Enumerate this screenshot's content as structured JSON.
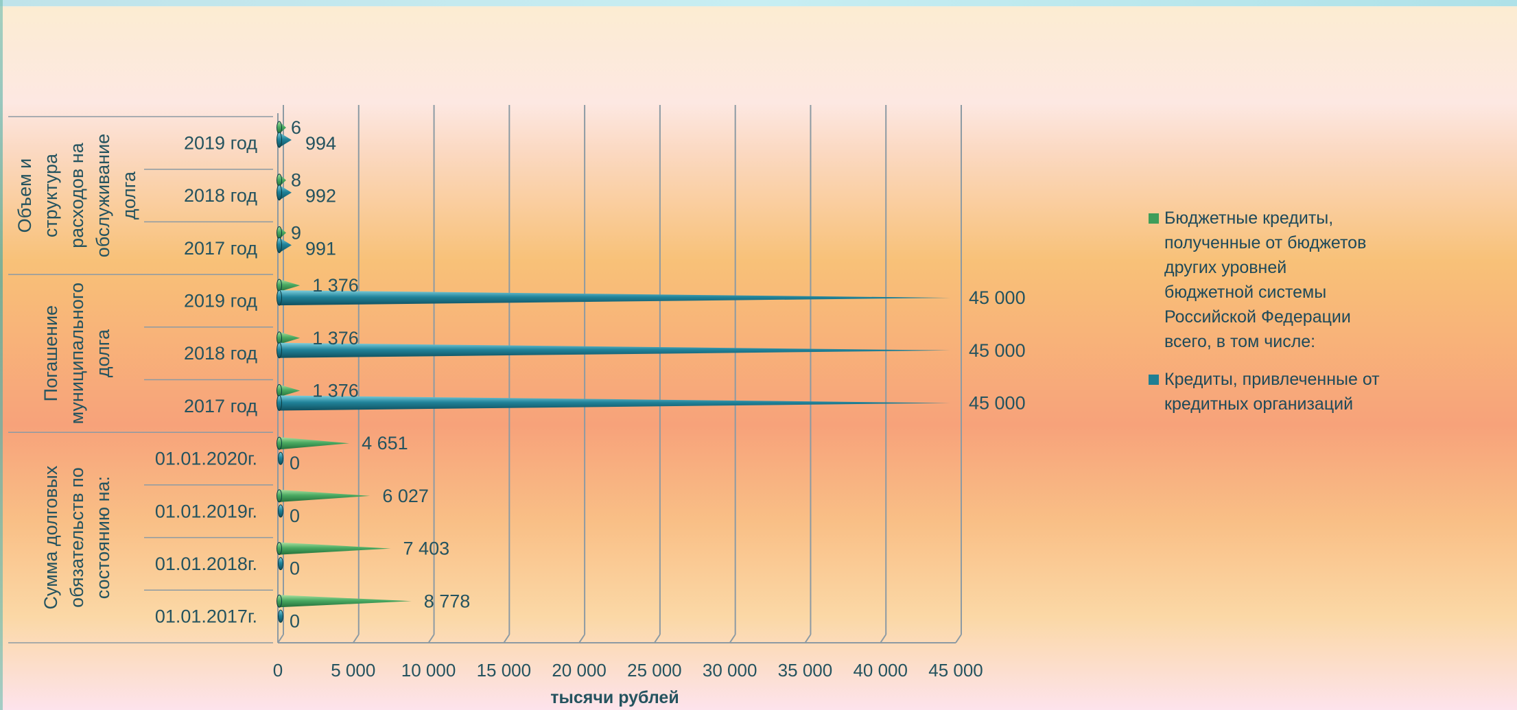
{
  "chart_data": {
    "type": "bar",
    "orientation": "horizontal",
    "style": "3d-cone",
    "xlabel": "тысячи рублей",
    "xlim": [
      0,
      45000
    ],
    "xticks": [
      "0",
      "5 000",
      "10 000",
      "15 000",
      "20 000",
      "25 000",
      "30 000",
      "35 000",
      "40 000",
      "45 000"
    ],
    "grid": true,
    "legend_position": "right",
    "groups": [
      {
        "label": "Объем и структура расходов на обслуживание долга",
        "lines": [
          "Объем и",
          "структура",
          "расходов на",
          "обслуживание",
          "долга"
        ]
      },
      {
        "label": "Погашение муниципального долга",
        "lines": [
          "Погашение",
          "муниципального",
          "долга"
        ]
      },
      {
        "label": "Сумма долговых обязательств по состоянию на:",
        "lines": [
          "Сумма долговых",
          "обязательств по",
          "состоянию на:"
        ]
      }
    ],
    "categories": [
      {
        "group": 0,
        "label": "2019 год"
      },
      {
        "group": 0,
        "label": "2018 год"
      },
      {
        "group": 0,
        "label": "2017 год"
      },
      {
        "group": 1,
        "label": "2019 год"
      },
      {
        "group": 1,
        "label": "2018 год"
      },
      {
        "group": 1,
        "label": "2017 год"
      },
      {
        "group": 2,
        "label": "01.01.2020г."
      },
      {
        "group": 2,
        "label": "01.01.2019г."
      },
      {
        "group": 2,
        "label": "01.01.2018г."
      },
      {
        "group": 2,
        "label": "01.01.2017г."
      }
    ],
    "series": [
      {
        "name": "Бюджетные кредиты, полученные от бюджетов других уровней бюджетной системы Российской Федерации всего, в том числе:",
        "color": "#3e9d5a",
        "values": [
          6,
          8,
          9,
          1376,
          1376,
          1376,
          4651,
          6027,
          7403,
          8778
        ],
        "labels": [
          "6",
          "8",
          "9",
          "1 376",
          "1 376",
          "1 376",
          "4 651",
          "6 027",
          "7 403",
          "8 778"
        ]
      },
      {
        "name": "Кредиты, привлеченные от кредитных организаций",
        "color": "#1f7f93",
        "values": [
          994,
          992,
          991,
          45000,
          45000,
          45000,
          0,
          0,
          0,
          0
        ],
        "labels": [
          "994",
          "992",
          "991",
          "45 000",
          "45 000",
          "45 000",
          "0",
          "0",
          "0",
          "0"
        ]
      }
    ]
  },
  "legend": {
    "items": [
      {
        "text": "Бюджетные кредиты, полученные от бюджетов других уровней бюджетной системы Российской Федерации всего, в том числе:",
        "color": "#3e9d5a"
      },
      {
        "text": "Кредиты, привлеченные от кредитных организаций",
        "color": "#1f7f93"
      }
    ]
  }
}
